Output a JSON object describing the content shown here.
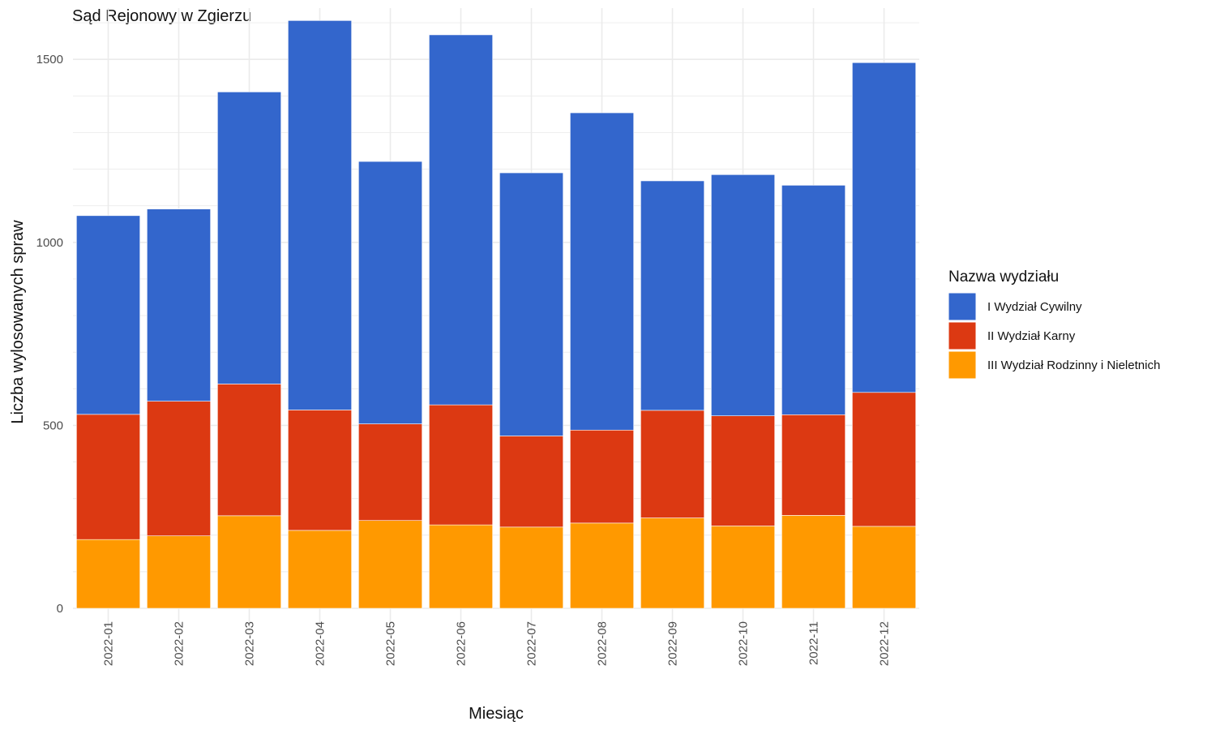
{
  "chart_data": {
    "type": "bar",
    "stacked": true,
    "title": "Sąd Rejonowy w Zgierzu",
    "xlabel": "Miesiąc",
    "ylabel": "Liczba wylosowanych spraw",
    "ylim": [
      0,
      1640
    ],
    "y_ticks": [
      0,
      500,
      1000,
      1500
    ],
    "grid": true,
    "legend_position": "right",
    "legend_title": "Nazwa wydziału",
    "categories": [
      "2022-01",
      "2022-02",
      "2022-03",
      "2022-04",
      "2022-05",
      "2022-06",
      "2022-07",
      "2022-08",
      "2022-09",
      "2022-10",
      "2022-11",
      "2022-12"
    ],
    "series": [
      {
        "name": "I Wydział Cywilny",
        "color": "#3366cc",
        "values": [
          543,
          525,
          798,
          1064,
          717,
          1011,
          719,
          867,
          627,
          659,
          627,
          901
        ]
      },
      {
        "name": "II Wydział Karny",
        "color": "#dc3912",
        "values": [
          342,
          368,
          360,
          329,
          264,
          328,
          249,
          254,
          294,
          301,
          275,
          366
        ]
      },
      {
        "name": "III Wydział Rodzinny i Nieletnich",
        "color": "#ff9900",
        "values": [
          188,
          198,
          253,
          213,
          240,
          228,
          222,
          233,
          247,
          225,
          254,
          224
        ]
      }
    ]
  }
}
